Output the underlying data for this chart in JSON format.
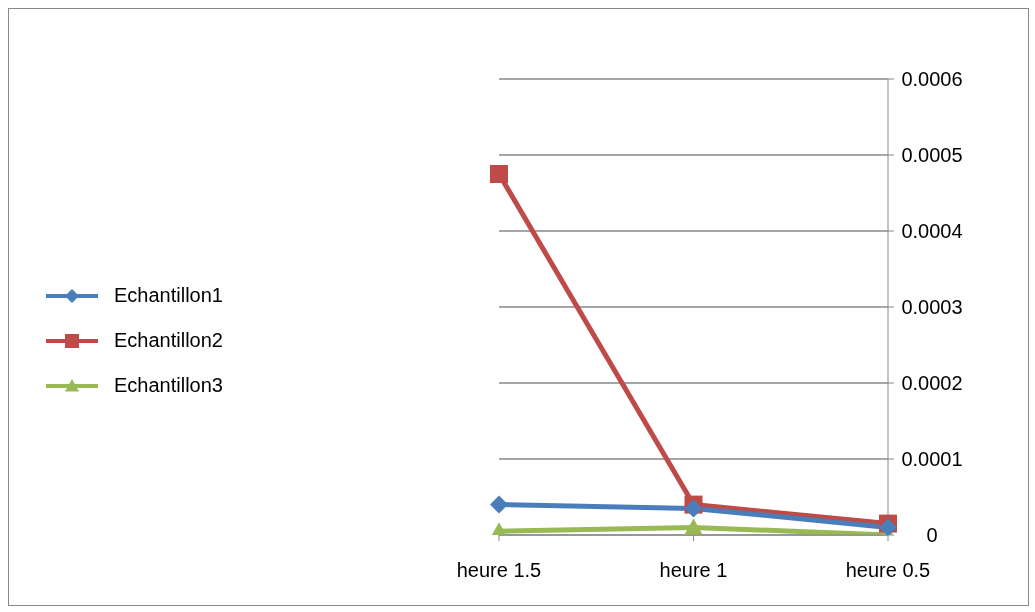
{
  "chart_data": {
    "type": "line",
    "categories": [
      "heure 1.5",
      "heure 1",
      "heure 0.5"
    ],
    "series": [
      {
        "name": "Echantillon1",
        "color": "#4a7ebb",
        "marker": "diamond",
        "values": [
          4e-05,
          3.5e-05,
          1e-05
        ]
      },
      {
        "name": "Echantillon2",
        "color": "#be4b48",
        "marker": "square",
        "values": [
          0.000475,
          4e-05,
          1.5e-05
        ]
      },
      {
        "name": "Echantillon3",
        "color": "#98b954",
        "marker": "triangle",
        "values": [
          5e-06,
          1e-05,
          0
        ]
      }
    ],
    "ylim": [
      0,
      0.0006
    ],
    "yticks": [
      0,
      0.0001,
      0.0002,
      0.0003,
      0.0004,
      0.0005,
      0.0006
    ],
    "grid": "y",
    "legend": "left"
  }
}
